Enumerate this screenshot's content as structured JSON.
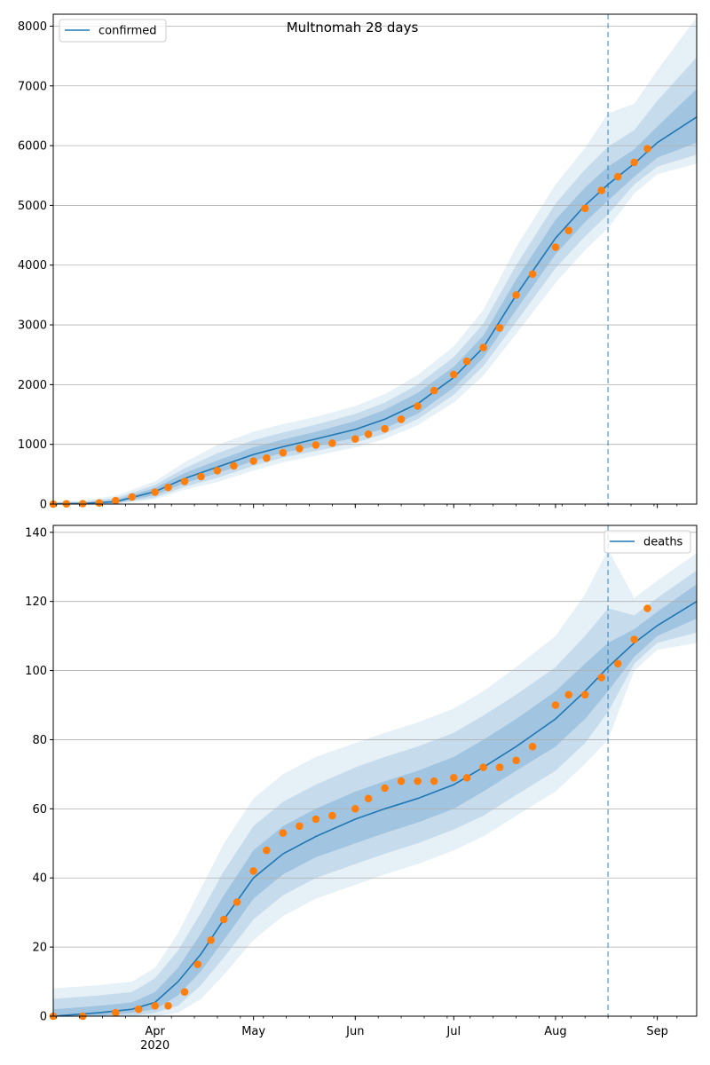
{
  "figure": {
    "title": "Multnomah 28 days"
  },
  "chart_data": [
    {
      "type": "line",
      "panel": "top",
      "title": "Multnomah 28 days",
      "legend_placement": "top-left",
      "grid": "y",
      "ylim": [
        0,
        8200
      ],
      "xlim": [
        "2020-03-01",
        "2020-09-13"
      ],
      "yticks": [
        0,
        1000,
        2000,
        3000,
        4000,
        5000,
        6000,
        7000,
        8000
      ],
      "forecast_start": "2020-08-17",
      "series": [
        {
          "name": "confirmed",
          "kind": "model-median",
          "color": "#1f77b4",
          "x": [
            "2020-03-01",
            "2020-03-10",
            "2020-03-20",
            "2020-04-01",
            "2020-04-10",
            "2020-04-20",
            "2020-05-01",
            "2020-05-10",
            "2020-05-20",
            "2020-06-01",
            "2020-06-10",
            "2020-06-20",
            "2020-07-01",
            "2020-07-10",
            "2020-07-20",
            "2020-08-01",
            "2020-08-10",
            "2020-08-17",
            "2020-08-25",
            "2020-09-01",
            "2020-09-13"
          ],
          "y": [
            5,
            10,
            40,
            210,
            430,
            620,
            830,
            960,
            1090,
            1250,
            1420,
            1680,
            2120,
            2620,
            3500,
            4450,
            5000,
            5350,
            5700,
            6050,
            6480
          ],
          "bands": [
            {
              "level": "inner",
              "lower": [
                0,
                0,
                20,
                150,
                350,
                520,
                720,
                860,
                970,
                1110,
                1270,
                1510,
                1950,
                2450,
                3250,
                4180,
                4720,
                5080,
                5480,
                5800,
                6050
              ],
              "upper": [
                15,
                25,
                70,
                270,
                520,
                730,
                950,
                1080,
                1210,
                1390,
                1580,
                1860,
                2300,
                2820,
                3760,
                4760,
                5300,
                5650,
                5940,
                6320,
                6950
              ]
            },
            {
              "level": "middle",
              "lower": [
                0,
                0,
                10,
                110,
                290,
                440,
                640,
                780,
                890,
                1030,
                1180,
                1420,
                1830,
                2310,
                3050,
                3950,
                4480,
                4850,
                5350,
                5650,
                5850
              ],
              "upper": [
                25,
                40,
                100,
                320,
                600,
                850,
                1070,
                1200,
                1330,
                1510,
                1700,
                2000,
                2460,
                3020,
                4000,
                5030,
                5600,
                5980,
                6260,
                6750,
                7480
              ]
            },
            {
              "level": "outer",
              "lower": [
                0,
                0,
                0,
                80,
                240,
                370,
                560,
                700,
                810,
                950,
                1090,
                1320,
                1700,
                2150,
                2850,
                3700,
                4250,
                4620,
                5200,
                5520,
                5700
              ],
              "upper": [
                40,
                60,
                140,
                380,
                700,
                990,
                1210,
                1340,
                1460,
                1640,
                1840,
                2160,
                2640,
                3250,
                4300,
                5350,
                5960,
                6540,
                6700,
                7260,
                8150
              ]
            }
          ]
        },
        {
          "name": "",
          "kind": "observed",
          "color": "#ff7f0e",
          "x": [
            "2020-03-01",
            "2020-03-05",
            "2020-03-10",
            "2020-03-15",
            "2020-03-20",
            "2020-03-25",
            "2020-04-01",
            "2020-04-05",
            "2020-04-10",
            "2020-04-15",
            "2020-04-20",
            "2020-04-25",
            "2020-05-01",
            "2020-05-05",
            "2020-05-10",
            "2020-05-15",
            "2020-05-20",
            "2020-05-25",
            "2020-06-01",
            "2020-06-05",
            "2020-06-10",
            "2020-06-15",
            "2020-06-20",
            "2020-06-25",
            "2020-07-01",
            "2020-07-05",
            "2020-07-10",
            "2020-07-15",
            "2020-07-20",
            "2020-07-25",
            "2020-08-01",
            "2020-08-05",
            "2020-08-10",
            "2020-08-15",
            "2020-08-20",
            "2020-08-25",
            "2020-08-29"
          ],
          "y": [
            0,
            5,
            8,
            20,
            60,
            120,
            200,
            280,
            380,
            460,
            560,
            640,
            720,
            770,
            860,
            930,
            990,
            1020,
            1090,
            1170,
            1260,
            1420,
            1640,
            1900,
            2170,
            2390,
            2620,
            2950,
            3500,
            3850,
            4300,
            4580,
            4950,
            5250,
            5480,
            5720,
            5950
          ]
        }
      ]
    },
    {
      "type": "line",
      "panel": "bottom",
      "legend_placement": "top-right",
      "grid": "y",
      "ylim": [
        0,
        142
      ],
      "xlim": [
        "2020-03-01",
        "2020-09-13"
      ],
      "yticks": [
        0,
        20,
        40,
        60,
        80,
        100,
        120,
        140
      ],
      "xtick_labels": [
        {
          "date": "2020-04-01",
          "label": "Apr",
          "sublabel": "2020"
        },
        {
          "date": "2020-05-01",
          "label": "May"
        },
        {
          "date": "2020-06-01",
          "label": "Jun"
        },
        {
          "date": "2020-07-01",
          "label": "Jul"
        },
        {
          "date": "2020-08-01",
          "label": "Aug"
        },
        {
          "date": "2020-09-01",
          "label": "Sep"
        }
      ],
      "forecast_start": "2020-08-17",
      "series": [
        {
          "name": "deaths",
          "kind": "model-median",
          "color": "#1f77b4",
          "x": [
            "2020-03-01",
            "2020-03-15",
            "2020-03-25",
            "2020-04-01",
            "2020-04-08",
            "2020-04-15",
            "2020-04-22",
            "2020-05-01",
            "2020-05-10",
            "2020-05-20",
            "2020-06-01",
            "2020-06-10",
            "2020-06-20",
            "2020-07-01",
            "2020-07-10",
            "2020-07-20",
            "2020-08-01",
            "2020-08-10",
            "2020-08-17",
            "2020-08-25",
            "2020-09-01",
            "2020-09-13"
          ],
          "y": [
            0,
            1,
            2,
            4,
            10,
            18,
            28,
            40,
            47,
            52,
            57,
            60,
            63,
            67,
            72,
            78,
            86,
            94,
            101,
            108,
            113,
            120
          ],
          "bands": [
            {
              "level": "inner",
              "lower": [
                0,
                0,
                1,
                2,
                6,
                13,
                22,
                34,
                41,
                46,
                50,
                53,
                56,
                60,
                65,
                71,
                78,
                86,
                94,
                104,
                110,
                115
              ],
              "upper": [
                2,
                3,
                4,
                7,
                14,
                24,
                35,
                48,
                55,
                60,
                65,
                68,
                71,
                75,
                80,
                86,
                94,
                102,
                108,
                112,
                117,
                125
              ]
            },
            {
              "level": "middle",
              "lower": [
                0,
                0,
                0,
                1,
                3,
                9,
                17,
                28,
                35,
                40,
                44,
                47,
                50,
                54,
                58,
                64,
                71,
                79,
                88,
                102,
                108,
                111
              ],
              "upper": [
                5,
                6,
                7,
                11,
                19,
                30,
                42,
                55,
                62,
                67,
                72,
                75,
                78,
                82,
                87,
                93,
                101,
                110,
                118,
                116,
                121,
                129
              ]
            },
            {
              "level": "outer",
              "lower": [
                0,
                0,
                0,
                0,
                1,
                5,
                12,
                22,
                29,
                34,
                38,
                41,
                44,
                48,
                52,
                58,
                65,
                73,
                80,
                100,
                106,
                108
              ],
              "upper": [
                8,
                9,
                10,
                14,
                24,
                37,
                50,
                63,
                70,
                75,
                79,
                82,
                85,
                89,
                94,
                101,
                110,
                122,
                135,
                121,
                126,
                134
              ]
            }
          ]
        },
        {
          "name": "",
          "kind": "observed",
          "color": "#ff7f0e",
          "x": [
            "2020-03-01",
            "2020-03-10",
            "2020-03-20",
            "2020-03-27",
            "2020-04-01",
            "2020-04-05",
            "2020-04-10",
            "2020-04-14",
            "2020-04-18",
            "2020-04-22",
            "2020-04-26",
            "2020-05-01",
            "2020-05-05",
            "2020-05-10",
            "2020-05-15",
            "2020-05-20",
            "2020-05-25",
            "2020-06-01",
            "2020-06-05",
            "2020-06-10",
            "2020-06-15",
            "2020-06-20",
            "2020-06-25",
            "2020-07-01",
            "2020-07-05",
            "2020-07-10",
            "2020-07-15",
            "2020-07-20",
            "2020-07-25",
            "2020-08-01",
            "2020-08-05",
            "2020-08-10",
            "2020-08-15",
            "2020-08-20",
            "2020-08-25",
            "2020-08-29"
          ],
          "y": [
            0,
            0,
            1,
            2,
            3,
            3,
            7,
            15,
            22,
            28,
            33,
            42,
            48,
            53,
            55,
            57,
            58,
            60,
            63,
            66,
            68,
            68,
            68,
            69,
            69,
            72,
            72,
            74,
            78,
            90,
            93,
            93,
            98,
            102,
            109,
            118
          ]
        }
      ]
    }
  ]
}
